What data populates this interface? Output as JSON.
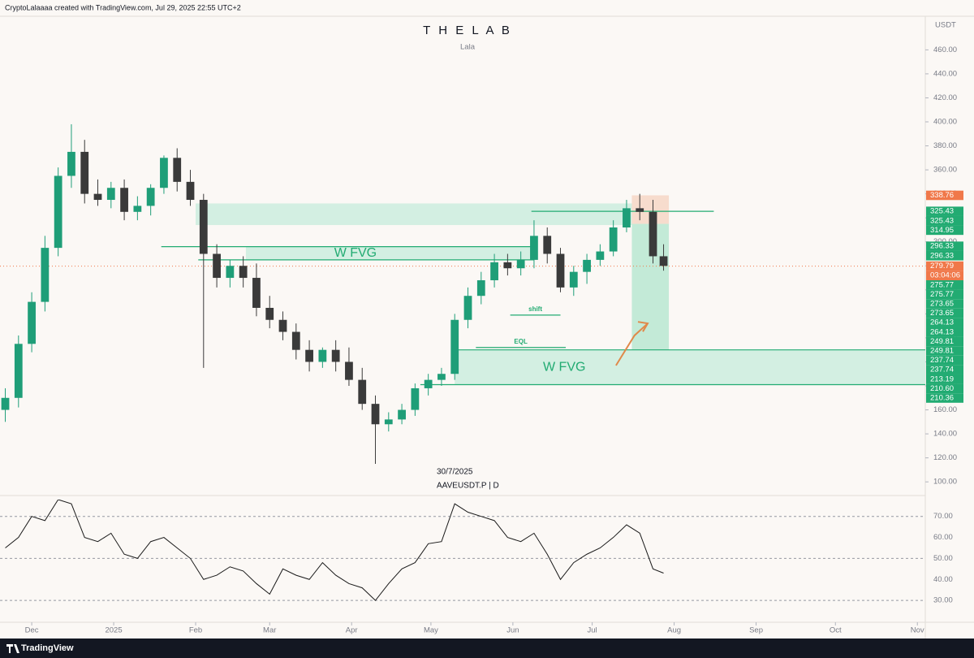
{
  "header": "CryptoLalaaaa created with TradingView.com, Jul 29, 2025 22:55 UTC+2",
  "footer": "TradingView",
  "chart_data": {
    "type": "candlestick",
    "title": "T H E L A B",
    "subtitle": "Lala",
    "currency": "USDT",
    "date_label": "30/7/2025",
    "symbol": "AAVEUSDT.P | D",
    "up_color": "#1f9e78",
    "down_color": "#3a3a3a",
    "x": [
      -10,
      -5,
      0,
      5,
      10,
      15,
      20,
      25,
      30,
      35,
      40,
      45,
      50,
      55,
      60,
      65,
      70,
      75,
      80,
      85,
      90,
      95,
      100,
      105,
      110,
      115,
      120,
      125,
      130,
      135,
      140,
      145,
      150,
      155,
      160,
      165,
      170,
      175,
      180,
      185,
      190,
      195,
      200,
      205,
      210,
      215,
      220,
      225,
      230,
      235,
      239
    ],
    "open": [
      160,
      170,
      215,
      250,
      295,
      355,
      375,
      340,
      335,
      345,
      325,
      330,
      345,
      370,
      350,
      335,
      290,
      270,
      280,
      270,
      245,
      235,
      225,
      210,
      200,
      210,
      200,
      185,
      165,
      148,
      152,
      160,
      178,
      185,
      190,
      235,
      255,
      268,
      283,
      278,
      285,
      305,
      290,
      262,
      275,
      285,
      292,
      312,
      328,
      325,
      288
    ],
    "high": [
      178,
      222,
      258,
      305,
      362,
      398,
      385,
      352,
      350,
      352,
      338,
      348,
      372,
      378,
      360,
      340,
      298,
      285,
      288,
      282,
      255,
      242,
      232,
      218,
      212,
      218,
      212,
      195,
      172,
      158,
      165,
      182,
      190,
      195,
      240,
      262,
      275,
      290,
      290,
      292,
      318,
      312,
      295,
      280,
      290,
      298,
      318,
      335,
      340,
      335,
      298
    ],
    "low": [
      150,
      162,
      208,
      242,
      288,
      345,
      332,
      330,
      328,
      318,
      318,
      322,
      340,
      342,
      330,
      195,
      262,
      262,
      262,
      238,
      228,
      218,
      202,
      192,
      195,
      192,
      180,
      160,
      115,
      142,
      148,
      155,
      172,
      180,
      185,
      228,
      248,
      262,
      272,
      272,
      278,
      282,
      258,
      255,
      265,
      280,
      288,
      308,
      318,
      282,
      276
    ],
    "close": [
      170,
      215,
      250,
      295,
      355,
      375,
      340,
      335,
      345,
      325,
      330,
      345,
      370,
      350,
      335,
      290,
      270,
      280,
      270,
      245,
      235,
      225,
      210,
      200,
      210,
      200,
      185,
      165,
      148,
      152,
      160,
      178,
      185,
      190,
      235,
      255,
      268,
      283,
      278,
      285,
      305,
      290,
      262,
      275,
      285,
      292,
      312,
      328,
      325,
      288,
      280
    ],
    "xlim": [
      -12,
      338
    ],
    "xticks": [
      {
        "value": 0,
        "label": "Dec"
      },
      {
        "value": 31,
        "label": "2025"
      },
      {
        "value": 62,
        "label": "Feb"
      },
      {
        "value": 90,
        "label": "Mar"
      },
      {
        "value": 121,
        "label": "Apr"
      },
      {
        "value": 151,
        "label": "May"
      },
      {
        "value": 182,
        "label": "Jun"
      },
      {
        "value": 212,
        "label": "Jul"
      },
      {
        "value": 243,
        "label": "Aug"
      },
      {
        "value": 274,
        "label": "Sep"
      },
      {
        "value": 304,
        "label": "Oct"
      },
      {
        "value": 335,
        "label": "Nov"
      }
    ],
    "ylim": [
      92,
      488
    ],
    "yticks": [
      {
        "value": 100,
        "label": "100.00"
      },
      {
        "value": 120,
        "label": "120.00"
      },
      {
        "value": 140,
        "label": "140.00"
      },
      {
        "value": 160,
        "label": "160.00"
      },
      {
        "value": 180,
        "label": "180.00"
      },
      {
        "value": 200,
        "label": "200.00"
      },
      {
        "value": 220,
        "label": "220.00"
      },
      {
        "value": 240,
        "label": "240.00"
      },
      {
        "value": 260,
        "label": "260.00"
      },
      {
        "value": 280,
        "label": "280.00"
      },
      {
        "value": 300,
        "label": "300.00"
      },
      {
        "value": 320,
        "label": "320.00"
      },
      {
        "value": 340,
        "label": "340.00"
      },
      {
        "value": 360,
        "label": "360.00"
      },
      {
        "value": 380,
        "label": "380.00"
      },
      {
        "value": 400,
        "label": "400.00"
      },
      {
        "value": 420,
        "label": "420.00"
      },
      {
        "value": 440,
        "label": "440.00"
      },
      {
        "value": 460,
        "label": "460.00"
      }
    ],
    "last_price": {
      "value": 279.79,
      "label": "279.79",
      "countdown": "03:04:06",
      "color": "#f0784a"
    },
    "price_labels": [
      {
        "value": 338.76,
        "label": "338.76",
        "color": "#f0784a"
      },
      {
        "value": 325.43,
        "label": "325.43",
        "color": "#22ab72"
      },
      {
        "value": 325.43,
        "label": "325.43",
        "color": "#22ab72"
      },
      {
        "value": 314.95,
        "label": "314.95",
        "color": "#22ab72"
      },
      {
        "value": 296.33,
        "label": "296.33",
        "color": "#22ab72"
      },
      {
        "value": 296.33,
        "label": "296.33",
        "color": "#22ab72"
      },
      {
        "value": 275.77,
        "label": "275.77",
        "color": "#22ab72"
      },
      {
        "value": 275.77,
        "label": "275.77",
        "color": "#22ab72"
      },
      {
        "value": 273.65,
        "label": "273.65",
        "color": "#22ab72"
      },
      {
        "value": 273.65,
        "label": "273.65",
        "color": "#22ab72"
      },
      {
        "value": 264.13,
        "label": "264.13",
        "color": "#22ab72"
      },
      {
        "value": 264.13,
        "label": "264.13",
        "color": "#22ab72"
      },
      {
        "value": 249.81,
        "label": "249.81",
        "color": "#22ab72"
      },
      {
        "value": 249.81,
        "label": "249.81",
        "color": "#22ab72"
      },
      {
        "value": 237.74,
        "label": "237.74",
        "color": "#22ab72"
      },
      {
        "value": 237.74,
        "label": "237.74",
        "color": "#22ab72"
      },
      {
        "value": 213.19,
        "label": "213.19",
        "color": "#22ab72"
      },
      {
        "value": 210.6,
        "label": "210.60",
        "color": "#22ab72"
      },
      {
        "value": 210.36,
        "label": "210.36",
        "color": "#22ab72"
      }
    ],
    "zones": [
      {
        "from": 62,
        "to": 241,
        "top": 332,
        "bottom": 314,
        "color": "#d3efe2"
      },
      {
        "from": 81,
        "to": 190,
        "top": 296,
        "bottom": 285,
        "color": "#d3efe2",
        "label": "W FVG"
      },
      {
        "from": 160,
        "to": 338,
        "top": 210,
        "bottom": 181,
        "color": "#d3efe2",
        "label": "W FVG"
      },
      {
        "from": 227,
        "to": 241,
        "top": 338.76,
        "bottom": 314.95,
        "color": "#f7dccd"
      },
      {
        "from": 227,
        "to": 241,
        "top": 314.95,
        "bottom": 210,
        "color": "#c3ead7"
      }
    ],
    "lines": [
      {
        "from": 189,
        "to": 258,
        "price": 325.43,
        "color": "#22ab72"
      },
      {
        "from": 49,
        "to": 190,
        "price": 296,
        "color": "#22ab72"
      },
      {
        "from": 63,
        "to": 190,
        "price": 285,
        "color": "#22ab72"
      },
      {
        "from": 160,
        "to": 338,
        "price": 210,
        "color": "#22ab72"
      },
      {
        "from": 147,
        "to": 338,
        "price": 181,
        "color": "#22ab72"
      },
      {
        "from": 181,
        "to": 200,
        "price": 239,
        "color": "#22ab72",
        "label": "shift"
      },
      {
        "from": 168,
        "to": 202,
        "price": 212,
        "color": "#22ab72",
        "label": "EQL"
      }
    ],
    "arrow": {
      "x": [
        221,
        228,
        233
      ],
      "y": [
        197,
        222,
        232
      ],
      "color": "#e0894a"
    },
    "rsi": {
      "color": "#1a1a1a",
      "values": [
        55,
        60,
        70,
        68,
        78,
        76,
        60,
        58,
        62,
        52,
        50,
        58,
        60,
        55,
        50,
        40,
        42,
        46,
        44,
        38,
        33,
        45,
        42,
        40,
        48,
        42,
        38,
        36,
        30,
        38,
        45,
        48,
        57,
        58,
        76,
        72,
        70,
        68,
        60,
        58,
        62,
        52,
        40,
        48,
        52,
        55,
        60,
        66,
        62,
        45,
        43
      ],
      "ylim": [
        20,
        78
      ],
      "yticks": [
        {
          "value": 30,
          "label": "30.00"
        },
        {
          "value": 40,
          "label": "40.00"
        },
        {
          "value": 50,
          "label": "50.00"
        },
        {
          "value": 60,
          "label": "60.00"
        },
        {
          "value": 70,
          "label": "70.00"
        }
      ],
      "levels": [
        30,
        50,
        70
      ]
    }
  }
}
